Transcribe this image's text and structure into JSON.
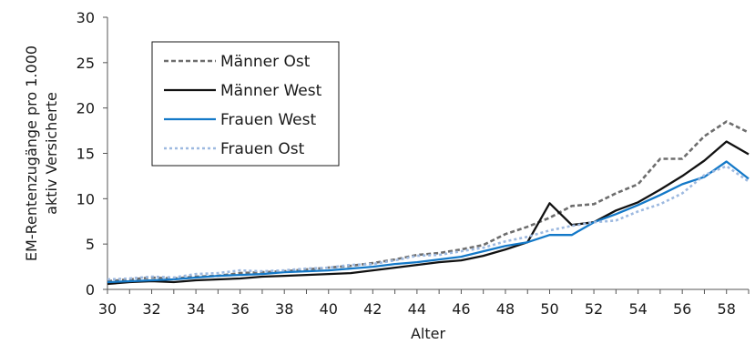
{
  "chart_data": {
    "type": "line",
    "title": "",
    "xlabel": "Alter",
    "ylabel_lines": [
      "EM-Rentenzugänge pro 1.000",
      "aktiv Versicherte"
    ],
    "xlim": [
      30,
      59
    ],
    "ylim": [
      0,
      30
    ],
    "xticks": [
      30,
      32,
      34,
      36,
      38,
      40,
      42,
      44,
      46,
      48,
      50,
      52,
      54,
      56,
      58
    ],
    "yticks": [
      0,
      5,
      10,
      15,
      20,
      25,
      30
    ],
    "grid": false,
    "legend_position": "top-left",
    "x": [
      30,
      31,
      32,
      33,
      34,
      35,
      36,
      37,
      38,
      39,
      40,
      41,
      42,
      43,
      44,
      45,
      46,
      47,
      48,
      49,
      50,
      51,
      52,
      53,
      54,
      55,
      56,
      57,
      58,
      59
    ],
    "series": [
      {
        "name": "Männer Ost",
        "color": "#6d6d6d",
        "dash": "dashed",
        "values": [
          0.9,
          1.1,
          1.3,
          1.2,
          1.4,
          1.5,
          1.8,
          1.9,
          2.0,
          2.2,
          2.4,
          2.6,
          2.9,
          3.3,
          3.8,
          4.0,
          4.4,
          4.9,
          6.1,
          6.9,
          7.9,
          9.2,
          9.4,
          10.6,
          11.6,
          14.4,
          14.4,
          16.9,
          18.5,
          17.3
        ]
      },
      {
        "name": "Männer West",
        "color": "#111111",
        "dash": "solid",
        "values": [
          0.6,
          0.8,
          0.9,
          0.8,
          1.0,
          1.1,
          1.2,
          1.4,
          1.5,
          1.6,
          1.7,
          1.8,
          2.1,
          2.4,
          2.7,
          3.0,
          3.2,
          3.7,
          4.4,
          5.2,
          9.5,
          7.1,
          7.4,
          8.7,
          9.6,
          11.0,
          12.5,
          14.2,
          16.3,
          14.9
        ]
      },
      {
        "name": "Frauen West",
        "color": "#1479c8",
        "dash": "solid",
        "values": [
          0.8,
          0.9,
          1.0,
          1.1,
          1.3,
          1.5,
          1.6,
          1.7,
          1.9,
          2.0,
          2.1,
          2.3,
          2.5,
          2.8,
          3.0,
          3.3,
          3.6,
          4.2,
          4.8,
          5.2,
          6.0,
          6.0,
          7.4,
          8.3,
          9.3,
          10.4,
          11.6,
          12.4,
          14.1,
          12.2
        ]
      },
      {
        "name": "Frauen Ost",
        "color": "#9db9e0",
        "dash": "dotted",
        "values": [
          1.1,
          1.2,
          1.4,
          1.3,
          1.7,
          1.8,
          2.1,
          2.0,
          2.1,
          2.3,
          2.4,
          2.7,
          2.8,
          3.2,
          3.7,
          3.8,
          4.2,
          4.6,
          5.3,
          5.8,
          6.5,
          7.0,
          7.4,
          7.6,
          8.6,
          9.4,
          10.6,
          12.6,
          13.6,
          11.9
        ]
      }
    ]
  }
}
